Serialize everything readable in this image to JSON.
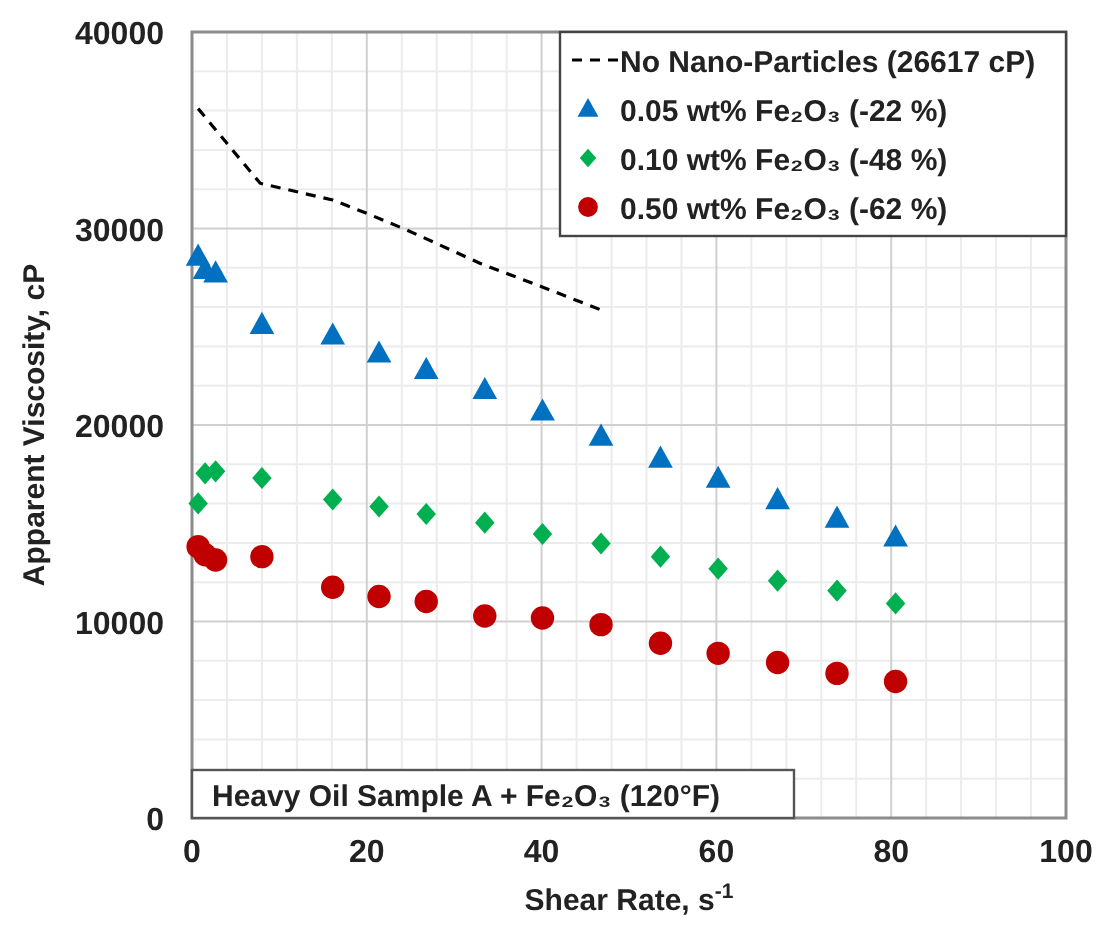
{
  "chart_data": {
    "type": "scatter",
    "xlabel": "Shear Rate, s$^{-1}$",
    "ylabel": "Apparent Viscosity, cP",
    "xlim": [
      0,
      100
    ],
    "xticks": [
      0,
      20,
      40,
      60,
      80,
      100
    ],
    "ylim": [
      0,
      40000
    ],
    "yticks": [
      0,
      10000,
      20000,
      30000,
      40000
    ],
    "grid": true,
    "legend": "top right",
    "annotations": [
      "Heavy Oil Sample A + Fe₂O₃ (120°F)"
    ],
    "series": [
      {
        "name": "No Nano-Particles (26617 cP)",
        "type": "line",
        "line_style": "dashed",
        "marker": "none",
        "color": "#000000",
        "x": [
          0.7,
          7.8,
          16.1,
          20,
          24.6,
          33,
          40,
          47
        ],
        "values": [
          36100,
          32300,
          31450,
          30770,
          29920,
          28220,
          27040,
          25820
        ]
      },
      {
        "name": "0.05 wt% Fe₂O₃ (-22 %)",
        "marker": "triangle",
        "color": "#0070c0",
        "x": [
          0.7,
          1.5,
          2.7,
          8,
          16.1,
          21.4,
          26.8,
          33.5,
          40.1,
          46.8,
          53.6,
          60.2,
          67,
          73.8,
          80.5
        ],
        "values": [
          28570,
          27890,
          27720,
          25100,
          24560,
          23640,
          22800,
          21780,
          20690,
          19410,
          18290,
          17270,
          16180,
          15240,
          14280
        ]
      },
      {
        "name": "0.10 wt% Fe₂O₃ (-48 %)",
        "marker": "diamond",
        "color": "#00b050",
        "x": [
          0.7,
          1.5,
          2.7,
          8,
          16.1,
          21.4,
          26.8,
          33.5,
          40.1,
          46.8,
          53.6,
          60.2,
          67,
          73.8,
          80.5
        ],
        "values": [
          16010,
          17540,
          17640,
          17300,
          16210,
          15850,
          15470,
          15030,
          14450,
          13970,
          13300,
          12690,
          12080,
          11570,
          10920
        ]
      },
      {
        "name": "0.50 wt% Fe₂O₃ (-62 %)",
        "marker": "circle",
        "color": "#c00000",
        "x": [
          0.7,
          1.5,
          2.7,
          8,
          16.1,
          21.4,
          26.8,
          33.5,
          40.1,
          46.8,
          53.6,
          60.2,
          67,
          73.8,
          80.5
        ],
        "values": [
          13810,
          13400,
          13130,
          13300,
          11740,
          11270,
          11020,
          10280,
          10180,
          9840,
          8890,
          8380,
          7910,
          7360,
          6950
        ]
      }
    ]
  }
}
